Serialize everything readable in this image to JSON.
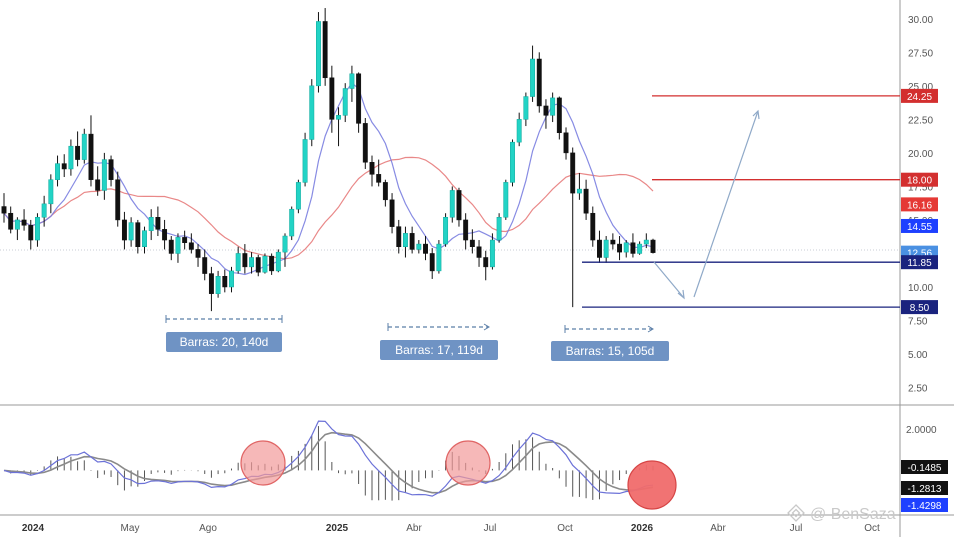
{
  "chart_data": {
    "type": "candlestick",
    "price_axis": {
      "ticks": [
        "30.00",
        "27.50",
        "25.00",
        "22.50",
        "20.00",
        "17.50",
        "15.00",
        "12.50",
        "10.00",
        "7.50",
        "5.00",
        "2.50"
      ],
      "ylim": [
        1.2,
        31.4
      ]
    },
    "osc_axis": {
      "ticks": [
        "2.0000"
      ],
      "ylim": [
        -2.0,
        3.0
      ]
    },
    "x_ticks": [
      {
        "label": "2024",
        "bold": true
      },
      {
        "label": "May",
        "bold": false
      },
      {
        "label": "Ago",
        "bold": false
      },
      {
        "label": "2025",
        "bold": true
      },
      {
        "label": "Abr",
        "bold": false
      },
      {
        "label": "Jul",
        "bold": false
      },
      {
        "label": "Oct",
        "bold": false
      },
      {
        "label": "2026",
        "bold": true
      },
      {
        "label": "Abr",
        "bold": false
      },
      {
        "label": "Jul",
        "bold": false
      },
      {
        "label": "Oct",
        "bold": false
      }
    ],
    "last_price": 12.56,
    "price_lines": [
      {
        "value": 24.25,
        "label": "24.25",
        "color": "#d32f2f"
      },
      {
        "value": 18.0,
        "label": "18.00",
        "color": "#d32f2f"
      },
      {
        "value": 11.85,
        "label": "11.85",
        "color": "#1a237e"
      },
      {
        "value": 8.5,
        "label": "8.50",
        "color": "#1a237e"
      }
    ],
    "price_tags": [
      {
        "value": 24.25,
        "label": "24.25",
        "color": "#d32f2f"
      },
      {
        "value": 18.0,
        "label": "18.00",
        "color": "#d32f2f"
      },
      {
        "value": 16.16,
        "label": "16.16",
        "color": "#e53935"
      },
      {
        "value": 14.55,
        "label": "14.55",
        "color": "#1e40ff"
      },
      {
        "value": 12.56,
        "label": "12.56",
        "color": "#4a90e2"
      },
      {
        "value": 11.85,
        "label": "11.85",
        "color": "#1a237e"
      },
      {
        "value": 8.5,
        "label": "8.50",
        "color": "#1a237e"
      }
    ],
    "osc_tags": [
      {
        "value": -0.1485,
        "label": "-0.1485",
        "color": "#111111"
      },
      {
        "value": -1.2813,
        "label": "-1.2813",
        "color": "#111111"
      },
      {
        "value": -1.4298,
        "label": "-1.4298",
        "color": "#1e40ff"
      }
    ],
    "bar_count_labels": [
      {
        "text": "Barras: 20, 140d"
      },
      {
        "text": "Barras: 17, 119d"
      },
      {
        "text": "Barras: 15, 105d"
      }
    ],
    "candles": [
      [
        16,
        17,
        14.8,
        15.5
      ],
      [
        15.5,
        16,
        14,
        14.3
      ],
      [
        14.3,
        15.2,
        13.5,
        15
      ],
      [
        15,
        15.8,
        14.2,
        14.6
      ],
      [
        14.6,
        15,
        12.8,
        13.5
      ],
      [
        13.5,
        15.5,
        13,
        15.2
      ],
      [
        15.2,
        16.8,
        14.5,
        16.2
      ],
      [
        16.2,
        18.4,
        15.5,
        18
      ],
      [
        18,
        19.8,
        17.5,
        19.2
      ],
      [
        19.2,
        19.9,
        18.2,
        18.8
      ],
      [
        18.8,
        21,
        18.3,
        20.5
      ],
      [
        20.5,
        21.6,
        19,
        19.5
      ],
      [
        19.5,
        21.8,
        19.2,
        21.4
      ],
      [
        21.4,
        22.8,
        17.5,
        18
      ],
      [
        18,
        19,
        16.8,
        17.2
      ],
      [
        17.2,
        20,
        16.5,
        19.5
      ],
      [
        19.5,
        19.8,
        17.5,
        18
      ],
      [
        18,
        18.6,
        14.5,
        15
      ],
      [
        15,
        15.6,
        12.8,
        13.5
      ],
      [
        13.5,
        15.2,
        13,
        14.8
      ],
      [
        14.8,
        15,
        12.5,
        13
      ],
      [
        13,
        14.5,
        12.5,
        14.2
      ],
      [
        14.2,
        15.8,
        13.5,
        15.2
      ],
      [
        15.2,
        16,
        13.8,
        14.3
      ],
      [
        14.3,
        15,
        12.8,
        13.5
      ],
      [
        13.5,
        13.8,
        12,
        12.5
      ],
      [
        12.5,
        14,
        11.8,
        13.7
      ],
      [
        13.7,
        14.2,
        12.8,
        13.3
      ],
      [
        13.3,
        14,
        12.5,
        12.8
      ],
      [
        12.8,
        13.2,
        11.5,
        12.2
      ],
      [
        12.2,
        12.8,
        10.5,
        11
      ],
      [
        11,
        11.5,
        8.2,
        9.5
      ],
      [
        9.5,
        11.2,
        9.2,
        10.8
      ],
      [
        10.8,
        11.3,
        9.6,
        10
      ],
      [
        10,
        11.5,
        9.6,
        11.2
      ],
      [
        11.2,
        13,
        11,
        12.5
      ],
      [
        12.5,
        13.2,
        11,
        11.5
      ],
      [
        11.5,
        12.6,
        11,
        12.2
      ],
      [
        12.2,
        12.4,
        10.8,
        11.1
      ],
      [
        11.1,
        12.5,
        11,
        12.3
      ],
      [
        12.3,
        12.5,
        10.9,
        11.2
      ],
      [
        11.2,
        12.8,
        11.1,
        12.6
      ],
      [
        12.6,
        14,
        11.5,
        13.8
      ],
      [
        13.8,
        16,
        13.5,
        15.8
      ],
      [
        15.8,
        18,
        15.5,
        17.8
      ],
      [
        17.8,
        21.5,
        17.5,
        21
      ],
      [
        21,
        25.5,
        20.5,
        25
      ],
      [
        25,
        30.5,
        24.5,
        29.8
      ],
      [
        29.8,
        30.8,
        25,
        25.6
      ],
      [
        25.6,
        26.5,
        21.5,
        22.5
      ],
      [
        22.5,
        23.4,
        20.5,
        22.8
      ],
      [
        22.8,
        25.2,
        22.3,
        24.8
      ],
      [
        24.8,
        26.5,
        23.8,
        25.9
      ],
      [
        25.9,
        26,
        21.5,
        22.2
      ],
      [
        22.2,
        22.6,
        18.8,
        19.3
      ],
      [
        19.3,
        19.8,
        17.5,
        18.4
      ],
      [
        18.4,
        19.5,
        17.5,
        17.8
      ],
      [
        17.8,
        18,
        16,
        16.5
      ],
      [
        16.5,
        17,
        14,
        14.5
      ],
      [
        14.5,
        15,
        12.5,
        13
      ],
      [
        13,
        14.5,
        12.2,
        14
      ],
      [
        14,
        14.5,
        12.5,
        12.8
      ],
      [
        12.8,
        13.5,
        12.5,
        13.2
      ],
      [
        13.2,
        13.8,
        12,
        12.5
      ],
      [
        12.5,
        12.9,
        10.6,
        11.2
      ],
      [
        11.2,
        13.5,
        11,
        13.2
      ],
      [
        13.2,
        15.5,
        13,
        15.2
      ],
      [
        15.2,
        17.5,
        14.8,
        17.2
      ],
      [
        17.2,
        17.4,
        14.5,
        15
      ],
      [
        15,
        15.5,
        12.8,
        13.5
      ],
      [
        13.5,
        14.3,
        12.5,
        13
      ],
      [
        13,
        13.5,
        11.5,
        12.2
      ],
      [
        12.2,
        12.7,
        10.5,
        11.5
      ],
      [
        11.5,
        14,
        11.3,
        13.5
      ],
      [
        13.5,
        15.5,
        13.3,
        15.2
      ],
      [
        15.2,
        18,
        15,
        17.8
      ],
      [
        17.8,
        21,
        17.5,
        20.8
      ],
      [
        20.8,
        23,
        20.5,
        22.5
      ],
      [
        22.5,
        24.5,
        22,
        24.2
      ],
      [
        24.2,
        28,
        23.8,
        27
      ],
      [
        27,
        27.5,
        23,
        23.5
      ],
      [
        23.5,
        24,
        21.8,
        22.8
      ],
      [
        22.8,
        24.5,
        22.3,
        24.1
      ],
      [
        24.1,
        24.2,
        21,
        21.5
      ],
      [
        21.5,
        21.9,
        19.5,
        20
      ],
      [
        20,
        20.4,
        8.5,
        17
      ],
      [
        17,
        18.5,
        16.5,
        17.3
      ],
      [
        17.3,
        18,
        15,
        15.5
      ],
      [
        15.5,
        16,
        13,
        13.5
      ],
      [
        13.5,
        14.2,
        11.8,
        12.2
      ],
      [
        12.2,
        13.8,
        11.8,
        13.5
      ],
      [
        13.5,
        14,
        12.8,
        13.2
      ],
      [
        13.2,
        13.8,
        12,
        12.6
      ],
      [
        12.6,
        13.5,
        12.2,
        13.3
      ],
      [
        13.3,
        14,
        12.2,
        12.5
      ],
      [
        12.5,
        13.4,
        12.4,
        13.2
      ],
      [
        13.2,
        14,
        12.9,
        13.5
      ],
      [
        13.5,
        13.6,
        12.5,
        12.56
      ]
    ]
  },
  "watermark": "@ BenSaza"
}
